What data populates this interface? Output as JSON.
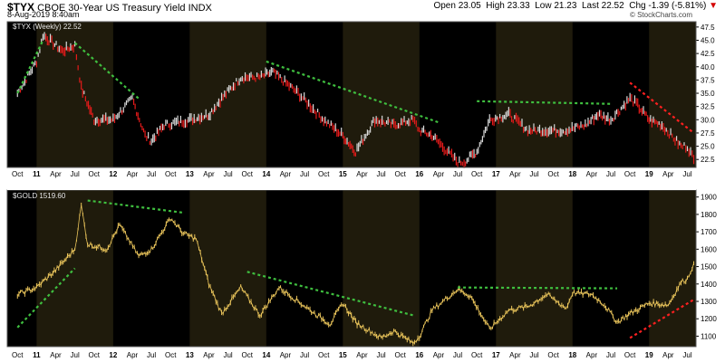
{
  "header": {
    "symbol": "$TYX",
    "name": "CBOE 30-Year US Treasury Yield",
    "exchange": "INDX",
    "date": "8-Aug-2019 8:40am",
    "quote": {
      "open_label": "Open",
      "open": "23.05",
      "high_label": "High",
      "high": "23.33",
      "low_label": "Low",
      "low": "21.23",
      "last_label": "Last",
      "last": "22.52",
      "chg_label": "Chg",
      "chg": "-1.39 (-5.81%)"
    },
    "credit": "© StockCharts.com"
  },
  "colors": {
    "background": "#000000",
    "alt_band": "#1f1b0c",
    "tyx_up": "#d9d9d9",
    "tyx_down": "#e41a1a",
    "gold_line": "#e8c35a",
    "trend_green": "#3fbf3f",
    "trend_red": "#ff2020",
    "down_arrow": "#d40000"
  },
  "chart_data": [
    {
      "type": "line",
      "panel": "top",
      "legend": "$TYX (Weekly) 22.52",
      "ylim": [
        21,
        48.5
      ],
      "yticks": [
        22.5,
        25.0,
        27.5,
        30.0,
        32.5,
        35.0,
        37.5,
        40.0,
        42.5,
        45.0,
        47.5
      ],
      "x": [
        "2010-10",
        "2011-01",
        "2011-02",
        "2011-05",
        "2011-07",
        "2011-08",
        "2011-10",
        "2012-01",
        "2012-04",
        "2012-06",
        "2012-07",
        "2012-09",
        "2013-01",
        "2013-04",
        "2013-06",
        "2013-09",
        "2013-12",
        "2014-02",
        "2014-06",
        "2014-10",
        "2015-01",
        "2015-03",
        "2015-06",
        "2015-09",
        "2015-12",
        "2016-01",
        "2016-03",
        "2016-07",
        "2016-08",
        "2016-10",
        "2016-12",
        "2017-03",
        "2017-06",
        "2017-09",
        "2017-12",
        "2018-03",
        "2018-05",
        "2018-07",
        "2018-10",
        "2018-11",
        "2019-01",
        "2019-03",
        "2019-06",
        "2019-07",
        "2019-08"
      ],
      "values": [
        35,
        41,
        46,
        43,
        44,
        36,
        30,
        30,
        34,
        27,
        26,
        29,
        30,
        31,
        34,
        38,
        38,
        39,
        35,
        30,
        27,
        24,
        30,
        29,
        30,
        28,
        27,
        22,
        22,
        24,
        30,
        31,
        28,
        28,
        28,
        29,
        31,
        30,
        34,
        33,
        30,
        29,
        25,
        25,
        22.5
      ],
      "xticks": [
        "Oct",
        "11",
        "Apr",
        "Jul",
        "Oct",
        "12",
        "Apr",
        "Jul",
        "Oct",
        "13",
        "Apr",
        "Jul",
        "Oct",
        "14",
        "Apr",
        "Jul",
        "Oct",
        "15",
        "Apr",
        "Jul",
        "Oct",
        "16",
        "Apr",
        "Jul",
        "Oct",
        "17",
        "Apr",
        "Jul",
        "Oct",
        "18",
        "Apr",
        "Jul",
        "Oct",
        "19",
        "Apr",
        "Jul"
      ],
      "trendlines": [
        {
          "color": "green",
          "from": [
            "2010-10",
            35
          ],
          "to": [
            "2011-02",
            45
          ]
        },
        {
          "color": "green",
          "from": [
            "2011-07",
            44.5
          ],
          "to": [
            "2012-05",
            34
          ]
        },
        {
          "color": "green",
          "from": [
            "2014-01",
            41
          ],
          "to": [
            "2016-04",
            29.5
          ]
        },
        {
          "color": "green",
          "from": [
            "2016-10",
            33.5
          ],
          "to": [
            "2018-07",
            33
          ]
        },
        {
          "color": "red",
          "from": [
            "2018-10",
            37
          ],
          "to": [
            "2019-08",
            27.5
          ]
        }
      ]
    },
    {
      "type": "line",
      "panel": "bottom",
      "legend": "$GOLD 1519.60",
      "ylim": [
        1040,
        1940
      ],
      "yticks": [
        1100,
        1200,
        1300,
        1400,
        1500,
        1600,
        1700,
        1800,
        1900
      ],
      "x": [
        "2010-10",
        "2011-01",
        "2011-04",
        "2011-07",
        "2011-08",
        "2011-09",
        "2011-12",
        "2012-02",
        "2012-05",
        "2012-07",
        "2012-10",
        "2012-12",
        "2013-02",
        "2013-04",
        "2013-06",
        "2013-09",
        "2013-12",
        "2014-03",
        "2014-06",
        "2014-09",
        "2014-11",
        "2015-01",
        "2015-03",
        "2015-07",
        "2015-09",
        "2015-12",
        "2016-01",
        "2016-03",
        "2016-07",
        "2016-09",
        "2016-12",
        "2017-03",
        "2017-06",
        "2017-09",
        "2017-12",
        "2018-01",
        "2018-04",
        "2018-06",
        "2018-08",
        "2018-10",
        "2019-01",
        "2019-04",
        "2019-06",
        "2019-07",
        "2019-08"
      ],
      "values": [
        1340,
        1380,
        1480,
        1600,
        1850,
        1630,
        1600,
        1740,
        1560,
        1600,
        1780,
        1690,
        1660,
        1400,
        1230,
        1380,
        1220,
        1380,
        1300,
        1220,
        1170,
        1290,
        1180,
        1090,
        1130,
        1060,
        1100,
        1250,
        1370,
        1330,
        1140,
        1250,
        1270,
        1340,
        1260,
        1350,
        1340,
        1280,
        1180,
        1230,
        1290,
        1280,
        1410,
        1430,
        1519.6
      ],
      "xticks": [
        "Oct",
        "11",
        "Apr",
        "Jul",
        "Oct",
        "12",
        "Apr",
        "Jul",
        "Oct",
        "13",
        "Apr",
        "Jul",
        "Oct",
        "14",
        "Apr",
        "Jul",
        "Oct",
        "15",
        "Apr",
        "Jul",
        "Oct",
        "16",
        "Apr",
        "Jul",
        "Oct",
        "17",
        "Apr",
        "Jul",
        "Oct",
        "18",
        "Apr",
        "Jul",
        "Oct",
        "19",
        "Apr",
        "Jul"
      ],
      "trendlines": [
        {
          "color": "green",
          "from": [
            "2010-10",
            1150
          ],
          "to": [
            "2011-07",
            1490
          ]
        },
        {
          "color": "green",
          "from": [
            "2011-09",
            1880
          ],
          "to": [
            "2012-12",
            1810
          ]
        },
        {
          "color": "green",
          "from": [
            "2013-10",
            1470
          ],
          "to": [
            "2015-12",
            1220
          ]
        },
        {
          "color": "green",
          "from": [
            "2016-07",
            1380
          ],
          "to": [
            "2018-08",
            1375
          ]
        },
        {
          "color": "red",
          "from": [
            "2018-10",
            1090
          ],
          "to": [
            "2019-08",
            1310
          ]
        }
      ]
    }
  ]
}
